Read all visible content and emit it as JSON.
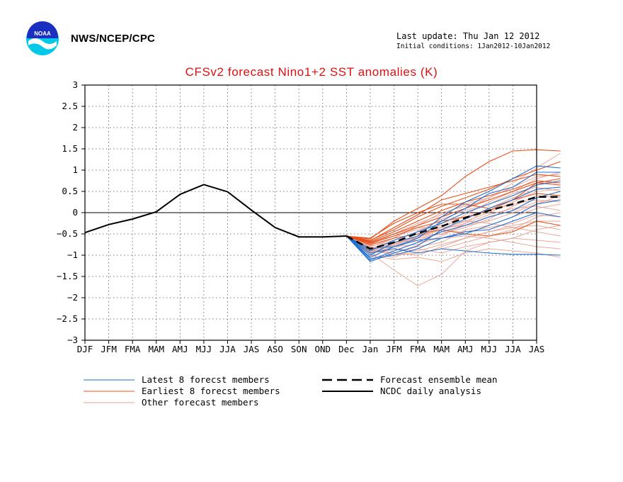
{
  "header": {
    "agency": "NWS/NCEP/CPC",
    "last_update": "Last update: Thu Jan 12 2012",
    "initial_conditions": "Initial conditions: 1Jan2012-10Jan2012"
  },
  "colors": {
    "latest": "#1f6fd1",
    "earliest": "#e8501a",
    "other": "#e8a090",
    "mean": "#000000",
    "analysis": "#000000",
    "title": "#e01010"
  },
  "chart_data": {
    "type": "line",
    "title": "CFSv2 forecast Nino1+2 SST anomalies (K)",
    "x": [
      "DJF",
      "JFM",
      "FMA",
      "MAM",
      "AMJ",
      "MJJ",
      "JJA",
      "JAS",
      "ASO",
      "SON",
      "OND",
      "Dec",
      "Jan",
      "JFM",
      "FMA",
      "MAM",
      "AMJ",
      "MJJ",
      "JJA",
      "JAS"
    ],
    "ylim": [
      -3,
      3
    ],
    "yticks": [
      3,
      2.5,
      2,
      1.5,
      1,
      0.5,
      0,
      -0.5,
      -1,
      -1.5,
      -2,
      -2.5,
      -3
    ],
    "ytick_labels": [
      "3",
      "2.5",
      "2",
      "1.5",
      "1",
      "0.5",
      "0",
      "−0.5",
      "−1",
      "−1.5",
      "−2",
      "−2.5",
      "−3"
    ],
    "grid": true,
    "zero_line": true,
    "legend": [
      {
        "label": "Latest 8 forecst members",
        "style": "latest"
      },
      {
        "label": "Earliest 8 forecst members",
        "style": "earliest"
      },
      {
        "label": "Other forecast members",
        "style": "other"
      },
      {
        "label": "Forecast ensemble mean",
        "style": "mean"
      },
      {
        "label": "NCDC daily analysis",
        "style": "analysis"
      }
    ],
    "analysis": {
      "name": "NCDC daily analysis",
      "values": [
        -0.47,
        -0.28,
        -0.15,
        0.02,
        0.43,
        0.66,
        0.49,
        0.06,
        -0.35,
        -0.57,
        -0.57,
        -0.55
      ]
    },
    "ensemble_mean": {
      "name": "Forecast ensemble mean",
      "values": [
        -0.55,
        -0.85,
        -0.7,
        -0.48,
        -0.32,
        -0.12,
        0.05,
        0.2,
        0.37,
        0.37
      ]
    },
    "latest_members": [
      [
        -0.55,
        -1.15,
        -0.95,
        -0.78,
        -0.4,
        -0.15,
        0.1,
        0.3,
        0.55,
        0.6
      ],
      [
        -0.55,
        -1.05,
        -0.8,
        -0.6,
        -0.2,
        0.1,
        0.45,
        0.6,
        0.95,
        0.95
      ],
      [
        -0.55,
        -1.0,
        -0.7,
        -0.55,
        -0.1,
        0.25,
        0.5,
        0.8,
        1.1,
        1.05
      ],
      [
        -0.55,
        -0.95,
        -0.85,
        -0.95,
        -0.85,
        -0.9,
        -0.95,
        -0.98,
        -0.98,
        -1.0
      ],
      [
        -0.55,
        -1.08,
        -1.0,
        -0.85,
        -0.6,
        -0.5,
        -0.3,
        -0.1,
        0.2,
        0.3
      ],
      [
        -0.55,
        -0.9,
        -0.65,
        -0.45,
        -0.25,
        0.0,
        0.2,
        0.4,
        0.65,
        0.75
      ],
      [
        -0.55,
        -0.85,
        -0.8,
        -0.65,
        -0.6,
        -0.45,
        -0.4,
        -0.2,
        0.0,
        -0.1
      ],
      [
        -0.55,
        -1.12,
        -0.9,
        -0.7,
        -0.45,
        -0.3,
        -0.1,
        0.05,
        0.35,
        0.5
      ]
    ],
    "earliest_members": [
      [
        -0.55,
        -0.62,
        -0.2,
        0.1,
        0.4,
        0.85,
        1.2,
        1.45,
        1.48,
        1.45
      ],
      [
        -0.55,
        -0.65,
        -0.4,
        -0.1,
        0.15,
        0.35,
        0.55,
        0.8,
        1.0,
        1.2
      ],
      [
        -0.55,
        -0.6,
        -0.25,
        0.0,
        0.2,
        0.2,
        0.1,
        0.3,
        0.7,
        0.8
      ],
      [
        -0.55,
        -0.7,
        -0.5,
        -0.3,
        -0.1,
        0.1,
        0.3,
        0.5,
        0.7,
        0.65
      ],
      [
        -0.55,
        -0.75,
        -0.6,
        -0.5,
        -0.4,
        -0.5,
        -0.55,
        -0.45,
        -0.2,
        -0.3
      ],
      [
        -0.55,
        -0.68,
        -0.45,
        -0.2,
        0.05,
        0.25,
        0.4,
        0.55,
        0.75,
        0.7
      ],
      [
        -0.55,
        -0.72,
        -0.55,
        -0.35,
        -0.2,
        -0.1,
        0.05,
        0.3,
        0.45,
        0.4
      ],
      [
        -0.55,
        -0.66,
        -0.35,
        -0.05,
        0.3,
        0.45,
        0.6,
        0.75,
        0.9,
        0.85
      ]
    ],
    "other_members": [
      [
        -0.55,
        -0.95,
        -1.35,
        -1.72,
        -1.45,
        -0.9,
        -0.7,
        -0.6,
        -0.4,
        -0.3
      ],
      [
        -0.55,
        -1.0,
        -1.1,
        -1.05,
        -1.15,
        -0.95,
        -0.85,
        -0.9,
        -0.95,
        -1.05
      ],
      [
        -0.55,
        -0.8,
        -0.6,
        -0.3,
        -0.1,
        0.1,
        0.35,
        0.7,
        1.05,
        1.4
      ],
      [
        -0.55,
        -0.85,
        -0.75,
        -0.55,
        -0.4,
        -0.2,
        0.0,
        0.25,
        0.5,
        0.55
      ],
      [
        -0.55,
        -0.9,
        -0.95,
        -0.8,
        -0.7,
        -0.4,
        -0.3,
        -0.1,
        0.1,
        0.2
      ],
      [
        -0.55,
        -0.75,
        -0.5,
        -0.35,
        -0.35,
        -0.3,
        -0.1,
        0.05,
        0.25,
        0.3
      ],
      [
        -0.55,
        -0.92,
        -0.85,
        -0.9,
        -0.75,
        -0.6,
        -0.45,
        -0.3,
        -0.2,
        -0.2
      ],
      [
        -0.55,
        -0.78,
        -0.65,
        -0.45,
        -0.15,
        0.05,
        0.2,
        0.45,
        0.6,
        0.5
      ],
      [
        -0.55,
        -0.88,
        -1.0,
        -0.95,
        -0.85,
        -0.7,
        -0.55,
        -0.4,
        -0.1,
        0.0
      ],
      [
        -0.55,
        -0.83,
        -0.7,
        -0.6,
        -0.5,
        -0.35,
        -0.15,
        0.15,
        0.4,
        0.35
      ],
      [
        -0.55,
        -0.95,
        -0.8,
        -0.75,
        -0.55,
        -0.25,
        0.1,
        0.35,
        0.55,
        0.6
      ],
      [
        -0.55,
        -0.7,
        -0.55,
        -0.4,
        -0.3,
        -0.2,
        -0.25,
        -0.35,
        -0.45,
        -0.55
      ],
      [
        -0.55,
        -0.86,
        -0.9,
        -0.7,
        -0.6,
        -0.55,
        -0.6,
        -0.7,
        -0.8,
        -0.85
      ],
      [
        -0.55,
        -0.8,
        -0.6,
        -0.3,
        0.0,
        0.15,
        0.3,
        0.5,
        0.8,
        0.95
      ],
      [
        -0.55,
        -0.93,
        -0.75,
        -0.55,
        -0.35,
        -0.05,
        0.25,
        0.5,
        0.7,
        0.7
      ],
      [
        -0.55,
        -0.77,
        -0.7,
        -0.65,
        -0.45,
        -0.45,
        -0.35,
        -0.25,
        -0.05,
        -0.1
      ],
      [
        -0.55,
        -0.9,
        -0.85,
        -0.6,
        -0.25,
        -0.1,
        0.05,
        0.2,
        0.3,
        0.25
      ],
      [
        -0.55,
        -0.82,
        -0.78,
        -0.55,
        -0.5,
        -0.3,
        -0.2,
        0.0,
        0.2,
        0.4
      ],
      [
        -0.55,
        -0.97,
        -1.05,
        -0.85,
        -0.95,
        -0.8,
        -0.7,
        -0.6,
        -0.65,
        -0.7
      ],
      [
        -0.55,
        -0.74,
        -0.5,
        -0.25,
        -0.05,
        0.2,
        0.35,
        0.6,
        0.85,
        0.9
      ],
      [
        -0.55,
        -0.88,
        -0.72,
        -0.58,
        -0.4,
        -0.25,
        -0.05,
        0.1,
        0.15,
        0.05
      ],
      [
        -0.55,
        -0.84,
        -0.95,
        -1.0,
        -0.8,
        -0.6,
        -0.45,
        -0.35,
        -0.3,
        -0.4
      ]
    ]
  }
}
